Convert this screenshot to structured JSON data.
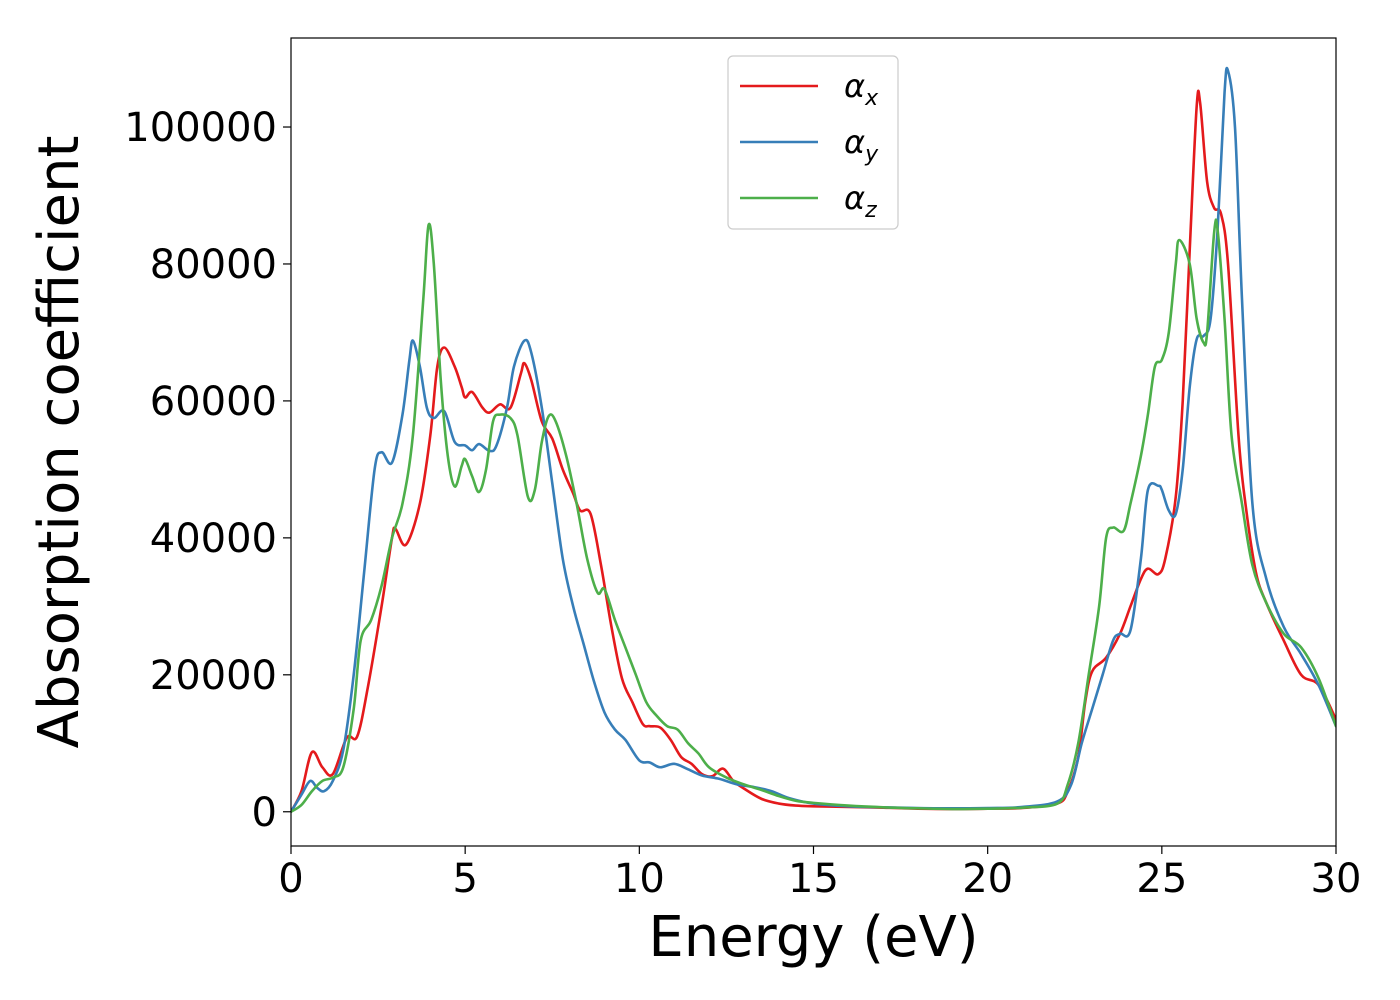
{
  "chart_data": {
    "type": "line",
    "xlabel": "Energy (eV)",
    "ylabel": "Absorption coefficient",
    "xlim": [
      0,
      30
    ],
    "ylim": [
      -5000,
      113000
    ],
    "xticks": [
      0,
      5,
      10,
      15,
      20,
      25,
      30
    ],
    "yticks": [
      0,
      20000,
      40000,
      60000,
      80000,
      100000
    ],
    "grid": false,
    "legend_position": "top-center",
    "series": [
      {
        "name": "α",
        "subscript": "x",
        "color": "#e41a1c",
        "points": [
          [
            0,
            0
          ],
          [
            0.3,
            3000
          ],
          [
            0.6,
            8700
          ],
          [
            0.9,
            6500
          ],
          [
            1.2,
            5500
          ],
          [
            1.6,
            10800
          ],
          [
            1.9,
            11000
          ],
          [
            2.2,
            18000
          ],
          [
            2.6,
            30000
          ],
          [
            2.9,
            40000
          ],
          [
            3.0,
            41300
          ],
          [
            3.3,
            39000
          ],
          [
            3.7,
            45000
          ],
          [
            4.0,
            55000
          ],
          [
            4.2,
            65000
          ],
          [
            4.4,
            67800
          ],
          [
            4.7,
            65000
          ],
          [
            4.9,
            62000
          ],
          [
            5.0,
            60500
          ],
          [
            5.2,
            61300
          ],
          [
            5.5,
            59000
          ],
          [
            5.7,
            58300
          ],
          [
            6.0,
            59500
          ],
          [
            6.3,
            59000
          ],
          [
            6.6,
            64000
          ],
          [
            6.7,
            65500
          ],
          [
            6.9,
            63000
          ],
          [
            7.2,
            57000
          ],
          [
            7.5,
            54500
          ],
          [
            7.8,
            50000
          ],
          [
            8.1,
            46500
          ],
          [
            8.3,
            44000
          ],
          [
            8.6,
            43500
          ],
          [
            8.9,
            36000
          ],
          [
            9.2,
            27000
          ],
          [
            9.5,
            19500
          ],
          [
            9.8,
            16000
          ],
          [
            10.1,
            12800
          ],
          [
            10.3,
            12500
          ],
          [
            10.6,
            12300
          ],
          [
            10.9,
            10500
          ],
          [
            11.2,
            8000
          ],
          [
            11.5,
            7000
          ],
          [
            11.8,
            5500
          ],
          [
            12.1,
            5200
          ],
          [
            12.4,
            6300
          ],
          [
            12.7,
            4500
          ],
          [
            13.0,
            3400
          ],
          [
            13.5,
            1900
          ],
          [
            14.0,
            1200
          ],
          [
            14.5,
            900
          ],
          [
            15,
            800
          ],
          [
            16,
            700
          ],
          [
            17,
            600
          ],
          [
            18,
            450
          ],
          [
            19,
            400
          ],
          [
            20,
            450
          ],
          [
            21,
            550
          ],
          [
            22,
            1200
          ],
          [
            22.3,
            3000
          ],
          [
            22.6,
            8000
          ],
          [
            22.8,
            16000
          ],
          [
            23.0,
            20500
          ],
          [
            23.4,
            22500
          ],
          [
            23.8,
            26000
          ],
          [
            24.1,
            30000
          ],
          [
            24.4,
            34000
          ],
          [
            24.6,
            35500
          ],
          [
            24.9,
            34700
          ],
          [
            25.1,
            37000
          ],
          [
            25.4,
            46000
          ],
          [
            25.6,
            60000
          ],
          [
            25.8,
            82000
          ],
          [
            26.0,
            103000
          ],
          [
            26.1,
            103500
          ],
          [
            26.3,
            92000
          ],
          [
            26.5,
            88200
          ],
          [
            26.7,
            87300
          ],
          [
            26.9,
            80000
          ],
          [
            27.2,
            55000
          ],
          [
            27.4,
            45000
          ],
          [
            27.7,
            35000
          ],
          [
            28.0,
            30500
          ],
          [
            28.5,
            25000
          ],
          [
            29.0,
            20000
          ],
          [
            29.5,
            18500
          ],
          [
            30,
            13500
          ]
        ]
      },
      {
        "name": "α",
        "subscript": "y",
        "color": "#377eb8",
        "points": [
          [
            0,
            0
          ],
          [
            0.3,
            2500
          ],
          [
            0.55,
            4500
          ],
          [
            0.75,
            3500
          ],
          [
            0.95,
            3000
          ],
          [
            1.2,
            4500
          ],
          [
            1.5,
            9000
          ],
          [
            1.8,
            20000
          ],
          [
            2.1,
            35000
          ],
          [
            2.4,
            50000
          ],
          [
            2.6,
            52500
          ],
          [
            2.9,
            51000
          ],
          [
            3.2,
            58000
          ],
          [
            3.4,
            66000
          ],
          [
            3.5,
            68800
          ],
          [
            3.7,
            65000
          ],
          [
            3.9,
            59000
          ],
          [
            4.1,
            57500
          ],
          [
            4.4,
            58500
          ],
          [
            4.7,
            54000
          ],
          [
            5.0,
            53500
          ],
          [
            5.2,
            52800
          ],
          [
            5.4,
            53700
          ],
          [
            5.7,
            52700
          ],
          [
            5.9,
            53500
          ],
          [
            6.2,
            59000
          ],
          [
            6.4,
            65000
          ],
          [
            6.7,
            68800
          ],
          [
            6.9,
            67000
          ],
          [
            7.2,
            59000
          ],
          [
            7.5,
            48000
          ],
          [
            7.8,
            37000
          ],
          [
            8.1,
            30000
          ],
          [
            8.4,
            24500
          ],
          [
            8.7,
            19000
          ],
          [
            9.0,
            14500
          ],
          [
            9.3,
            12000
          ],
          [
            9.6,
            10500
          ],
          [
            10.0,
            7500
          ],
          [
            10.3,
            7200
          ],
          [
            10.6,
            6500
          ],
          [
            11.0,
            7000
          ],
          [
            11.4,
            6200
          ],
          [
            11.8,
            5300
          ],
          [
            12.3,
            4800
          ],
          [
            12.8,
            4000
          ],
          [
            13.3,
            3600
          ],
          [
            13.8,
            3000
          ],
          [
            14.3,
            2000
          ],
          [
            15,
            1200
          ],
          [
            16,
            800
          ],
          [
            17,
            650
          ],
          [
            18,
            550
          ],
          [
            19,
            500
          ],
          [
            20,
            550
          ],
          [
            21,
            700
          ],
          [
            22,
            1500
          ],
          [
            22.4,
            4000
          ],
          [
            22.7,
            10000
          ],
          [
            23.0,
            15000
          ],
          [
            23.3,
            20000
          ],
          [
            23.6,
            25000
          ],
          [
            23.8,
            26000
          ],
          [
            24.1,
            26500
          ],
          [
            24.4,
            37000
          ],
          [
            24.6,
            47000
          ],
          [
            24.9,
            47600
          ],
          [
            25.0,
            47000
          ],
          [
            25.2,
            44000
          ],
          [
            25.4,
            43500
          ],
          [
            25.6,
            50000
          ],
          [
            25.8,
            62000
          ],
          [
            26.0,
            69000
          ],
          [
            26.2,
            69500
          ],
          [
            26.4,
            72000
          ],
          [
            26.6,
            85000
          ],
          [
            26.8,
            105000
          ],
          [
            26.9,
            108200
          ],
          [
            27.1,
            100000
          ],
          [
            27.3,
            75000
          ],
          [
            27.6,
            45000
          ],
          [
            28.0,
            34000
          ],
          [
            28.5,
            27000
          ],
          [
            29.0,
            23000
          ],
          [
            29.5,
            18500
          ],
          [
            30,
            12500
          ]
        ]
      },
      {
        "name": "α",
        "subscript": "z",
        "color": "#4daf4a",
        "points": [
          [
            0,
            0
          ],
          [
            0.3,
            1000
          ],
          [
            0.6,
            3000
          ],
          [
            0.9,
            4500
          ],
          [
            1.2,
            5000
          ],
          [
            1.5,
            6500
          ],
          [
            1.8,
            15000
          ],
          [
            2.0,
            25000
          ],
          [
            2.3,
            28000
          ],
          [
            2.6,
            33000
          ],
          [
            2.9,
            40000
          ],
          [
            3.2,
            45000
          ],
          [
            3.5,
            55000
          ],
          [
            3.8,
            75000
          ],
          [
            3.95,
            85700
          ],
          [
            4.1,
            80000
          ],
          [
            4.3,
            63000
          ],
          [
            4.5,
            52000
          ],
          [
            4.7,
            47500
          ],
          [
            4.9,
            50500
          ],
          [
            5.0,
            51500
          ],
          [
            5.2,
            49000
          ],
          [
            5.4,
            46700
          ],
          [
            5.6,
            50000
          ],
          [
            5.8,
            57000
          ],
          [
            6.0,
            58000
          ],
          [
            6.3,
            57500
          ],
          [
            6.5,
            55000
          ],
          [
            6.8,
            46000
          ],
          [
            7.0,
            47000
          ],
          [
            7.2,
            54000
          ],
          [
            7.4,
            57800
          ],
          [
            7.6,
            57000
          ],
          [
            7.9,
            52000
          ],
          [
            8.2,
            45000
          ],
          [
            8.5,
            37000
          ],
          [
            8.8,
            32000
          ],
          [
            9.0,
            32500
          ],
          [
            9.3,
            28000
          ],
          [
            9.6,
            24000
          ],
          [
            9.9,
            20000
          ],
          [
            10.2,
            16000
          ],
          [
            10.5,
            14000
          ],
          [
            10.8,
            12500
          ],
          [
            11.1,
            12000
          ],
          [
            11.4,
            10000
          ],
          [
            11.7,
            8500
          ],
          [
            12.0,
            6500
          ],
          [
            12.5,
            5000
          ],
          [
            13.0,
            4000
          ],
          [
            13.5,
            3200
          ],
          [
            14.0,
            2300
          ],
          [
            14.5,
            1600
          ],
          [
            15,
            1300
          ],
          [
            16,
            900
          ],
          [
            17,
            650
          ],
          [
            18,
            500
          ],
          [
            19,
            400
          ],
          [
            20,
            450
          ],
          [
            21,
            600
          ],
          [
            22,
            1200
          ],
          [
            22.3,
            4000
          ],
          [
            22.6,
            10000
          ],
          [
            22.9,
            20000
          ],
          [
            23.2,
            30000
          ],
          [
            23.4,
            40000
          ],
          [
            23.6,
            41500
          ],
          [
            23.9,
            41000
          ],
          [
            24.1,
            45000
          ],
          [
            24.4,
            52000
          ],
          [
            24.6,
            58000
          ],
          [
            24.8,
            65000
          ],
          [
            25.0,
            66000
          ],
          [
            25.2,
            70000
          ],
          [
            25.4,
            80000
          ],
          [
            25.5,
            83500
          ],
          [
            25.8,
            80000
          ],
          [
            26.0,
            72000
          ],
          [
            26.2,
            68500
          ],
          [
            26.3,
            70000
          ],
          [
            26.5,
            84500
          ],
          [
            26.6,
            85000
          ],
          [
            26.8,
            72000
          ],
          [
            27.0,
            55000
          ],
          [
            27.3,
            45000
          ],
          [
            27.6,
            36000
          ],
          [
            28.0,
            30500
          ],
          [
            28.5,
            26000
          ],
          [
            29.0,
            24000
          ],
          [
            29.5,
            19500
          ],
          [
            30,
            12500
          ]
        ]
      }
    ]
  }
}
